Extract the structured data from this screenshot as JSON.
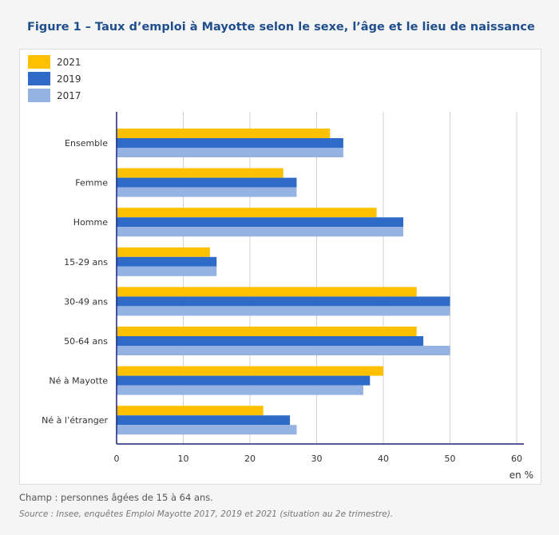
{
  "figure": {
    "title": "Figure 1 – Taux d’emploi à Mayotte selon le sexe, l’âge et le lieu de naissance",
    "note": "Champ : personnes âgées de 15 à 64 ans.",
    "source": "Source : Insee, enquêtes Emploi Mayotte 2017, 2019 et 2021 (situation au 2e trimestre)."
  },
  "chart_data": {
    "type": "bar",
    "orientation": "horizontal",
    "categories": [
      "Ensemble",
      "Femme",
      "Homme",
      "15-29 ans",
      "30-49 ans",
      "50-64 ans",
      "Né à Mayotte",
      "Né à l’étranger"
    ],
    "series": [
      {
        "name": "2021",
        "color": "#ffc000",
        "values": [
          32,
          25,
          39,
          14,
          45,
          45,
          40,
          22
        ]
      },
      {
        "name": "2019",
        "color": "#2e6bc9",
        "values": [
          34,
          27,
          43,
          15,
          50,
          46,
          38,
          26
        ]
      },
      {
        "name": "2017",
        "color": "#95b3e2",
        "values": [
          34,
          27,
          43,
          15,
          50,
          50,
          37,
          27
        ]
      }
    ],
    "xlim": [
      0,
      60
    ],
    "xticks": [
      0,
      10,
      20,
      30,
      40,
      50,
      60
    ],
    "unit_label": "en %",
    "grid": true,
    "legend_position": "top-left",
    "axis_color": "#1a237e",
    "grid_color": "#d0d0d0"
  }
}
